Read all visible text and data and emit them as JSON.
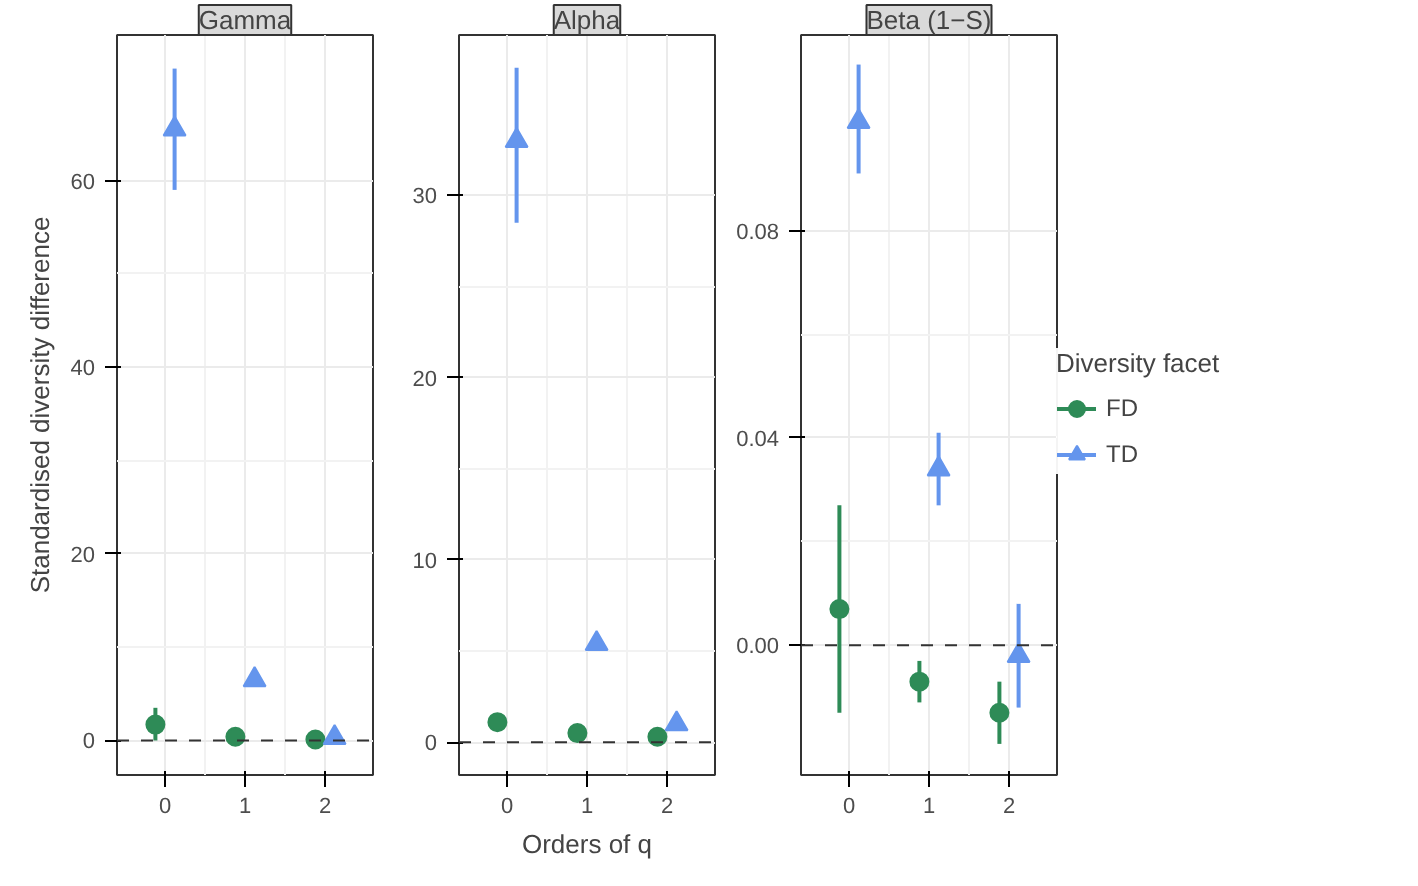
{
  "chart_data": [
    {
      "type": "scatter",
      "title": "Gamma",
      "ylabel": "Standardised diversity difference",
      "xlim": [
        -0.6,
        2.6
      ],
      "xticks": [
        0,
        1,
        2
      ],
      "ylim": [
        -3.7,
        75.6
      ],
      "yticks": [
        0,
        20,
        40,
        60
      ],
      "grid": true,
      "legend": false,
      "ref_lines": [
        {
          "axis": "y",
          "value": 0,
          "line_style": "dashed",
          "color": "#333333"
        }
      ],
      "series": [
        {
          "type": "scatter",
          "color": "#2e8b57",
          "marker": "circle",
          "x": [
            -0.12,
            0.88,
            1.88
          ],
          "values": [
            1.7,
            0.4,
            0.1
          ],
          "errors": [
            [
              0.0,
              3.5
            ],
            null,
            null
          ]
        },
        {
          "type": "scatter",
          "color": "#6495ed",
          "marker": "triangle",
          "x": [
            0.12,
            1.12,
            2.12
          ],
          "values": [
            65.5,
            6.5,
            0.3
          ],
          "errors": [
            [
              59,
              72
            ],
            null,
            null
          ]
        }
      ]
    },
    {
      "type": "scatter",
      "title": "Alpha",
      "xlabel": "Orders of q",
      "xlim": [
        -0.6,
        2.6
      ],
      "xticks": [
        0,
        1,
        2
      ],
      "ylim": [
        -1.8,
        38.8
      ],
      "yticks": [
        0,
        10,
        20,
        30
      ],
      "grid": true,
      "legend": false,
      "ref_lines": [
        {
          "axis": "y",
          "value": 0,
          "line_style": "dashed",
          "color": "#333333"
        }
      ],
      "series": [
        {
          "color": "#2e8b57",
          "marker": "circle",
          "x": [
            -0.12,
            0.88,
            1.88
          ],
          "values": [
            1.1,
            0.5,
            0.3
          ],
          "errors": [
            null,
            null,
            null
          ]
        },
        {
          "color": "#6495ed",
          "marker": "triangle",
          "x": [
            0.12,
            1.12,
            2.12
          ],
          "values": [
            33,
            5.4,
            1.0
          ],
          "errors": [
            [
              28.5,
              37
            ],
            null,
            null
          ]
        }
      ]
    },
    {
      "type": "scatter",
      "title": "Beta (1−S)",
      "legend_title": "Diversity facet",
      "xlim": [
        -0.6,
        2.6
      ],
      "xticks": [
        0,
        1,
        2
      ],
      "ylim": [
        -0.025,
        0.1177
      ],
      "yticks": [
        {
          "value": 0,
          "label": "0.00"
        },
        0.04,
        0.08
      ],
      "grid": true,
      "legend": "right",
      "ref_lines": [
        {
          "axis": "y",
          "value": 0,
          "line_style": "dashed",
          "color": "#333333"
        }
      ],
      "series": [
        {
          "name": "FD",
          "color": "#2e8b57",
          "marker": "circle",
          "x": [
            -0.12,
            0.88,
            1.88
          ],
          "values": [
            0.007,
            -0.007,
            -0.013
          ],
          "errors": [
            [
              -0.013,
              0.027
            ],
            [
              -0.011,
              -0.003
            ],
            [
              -0.019,
              -0.007
            ]
          ]
        },
        {
          "name": "TD",
          "color": "#6495ed",
          "marker": "triangle",
          "x": [
            0.12,
            1.12,
            2.12
          ],
          "values": [
            0.101,
            0.034,
            -0.002
          ],
          "errors": [
            [
              0.091,
              0.112
            ],
            [
              0.027,
              0.041
            ],
            [
              -0.012,
              0.008
            ]
          ]
        }
      ]
    }
  ]
}
